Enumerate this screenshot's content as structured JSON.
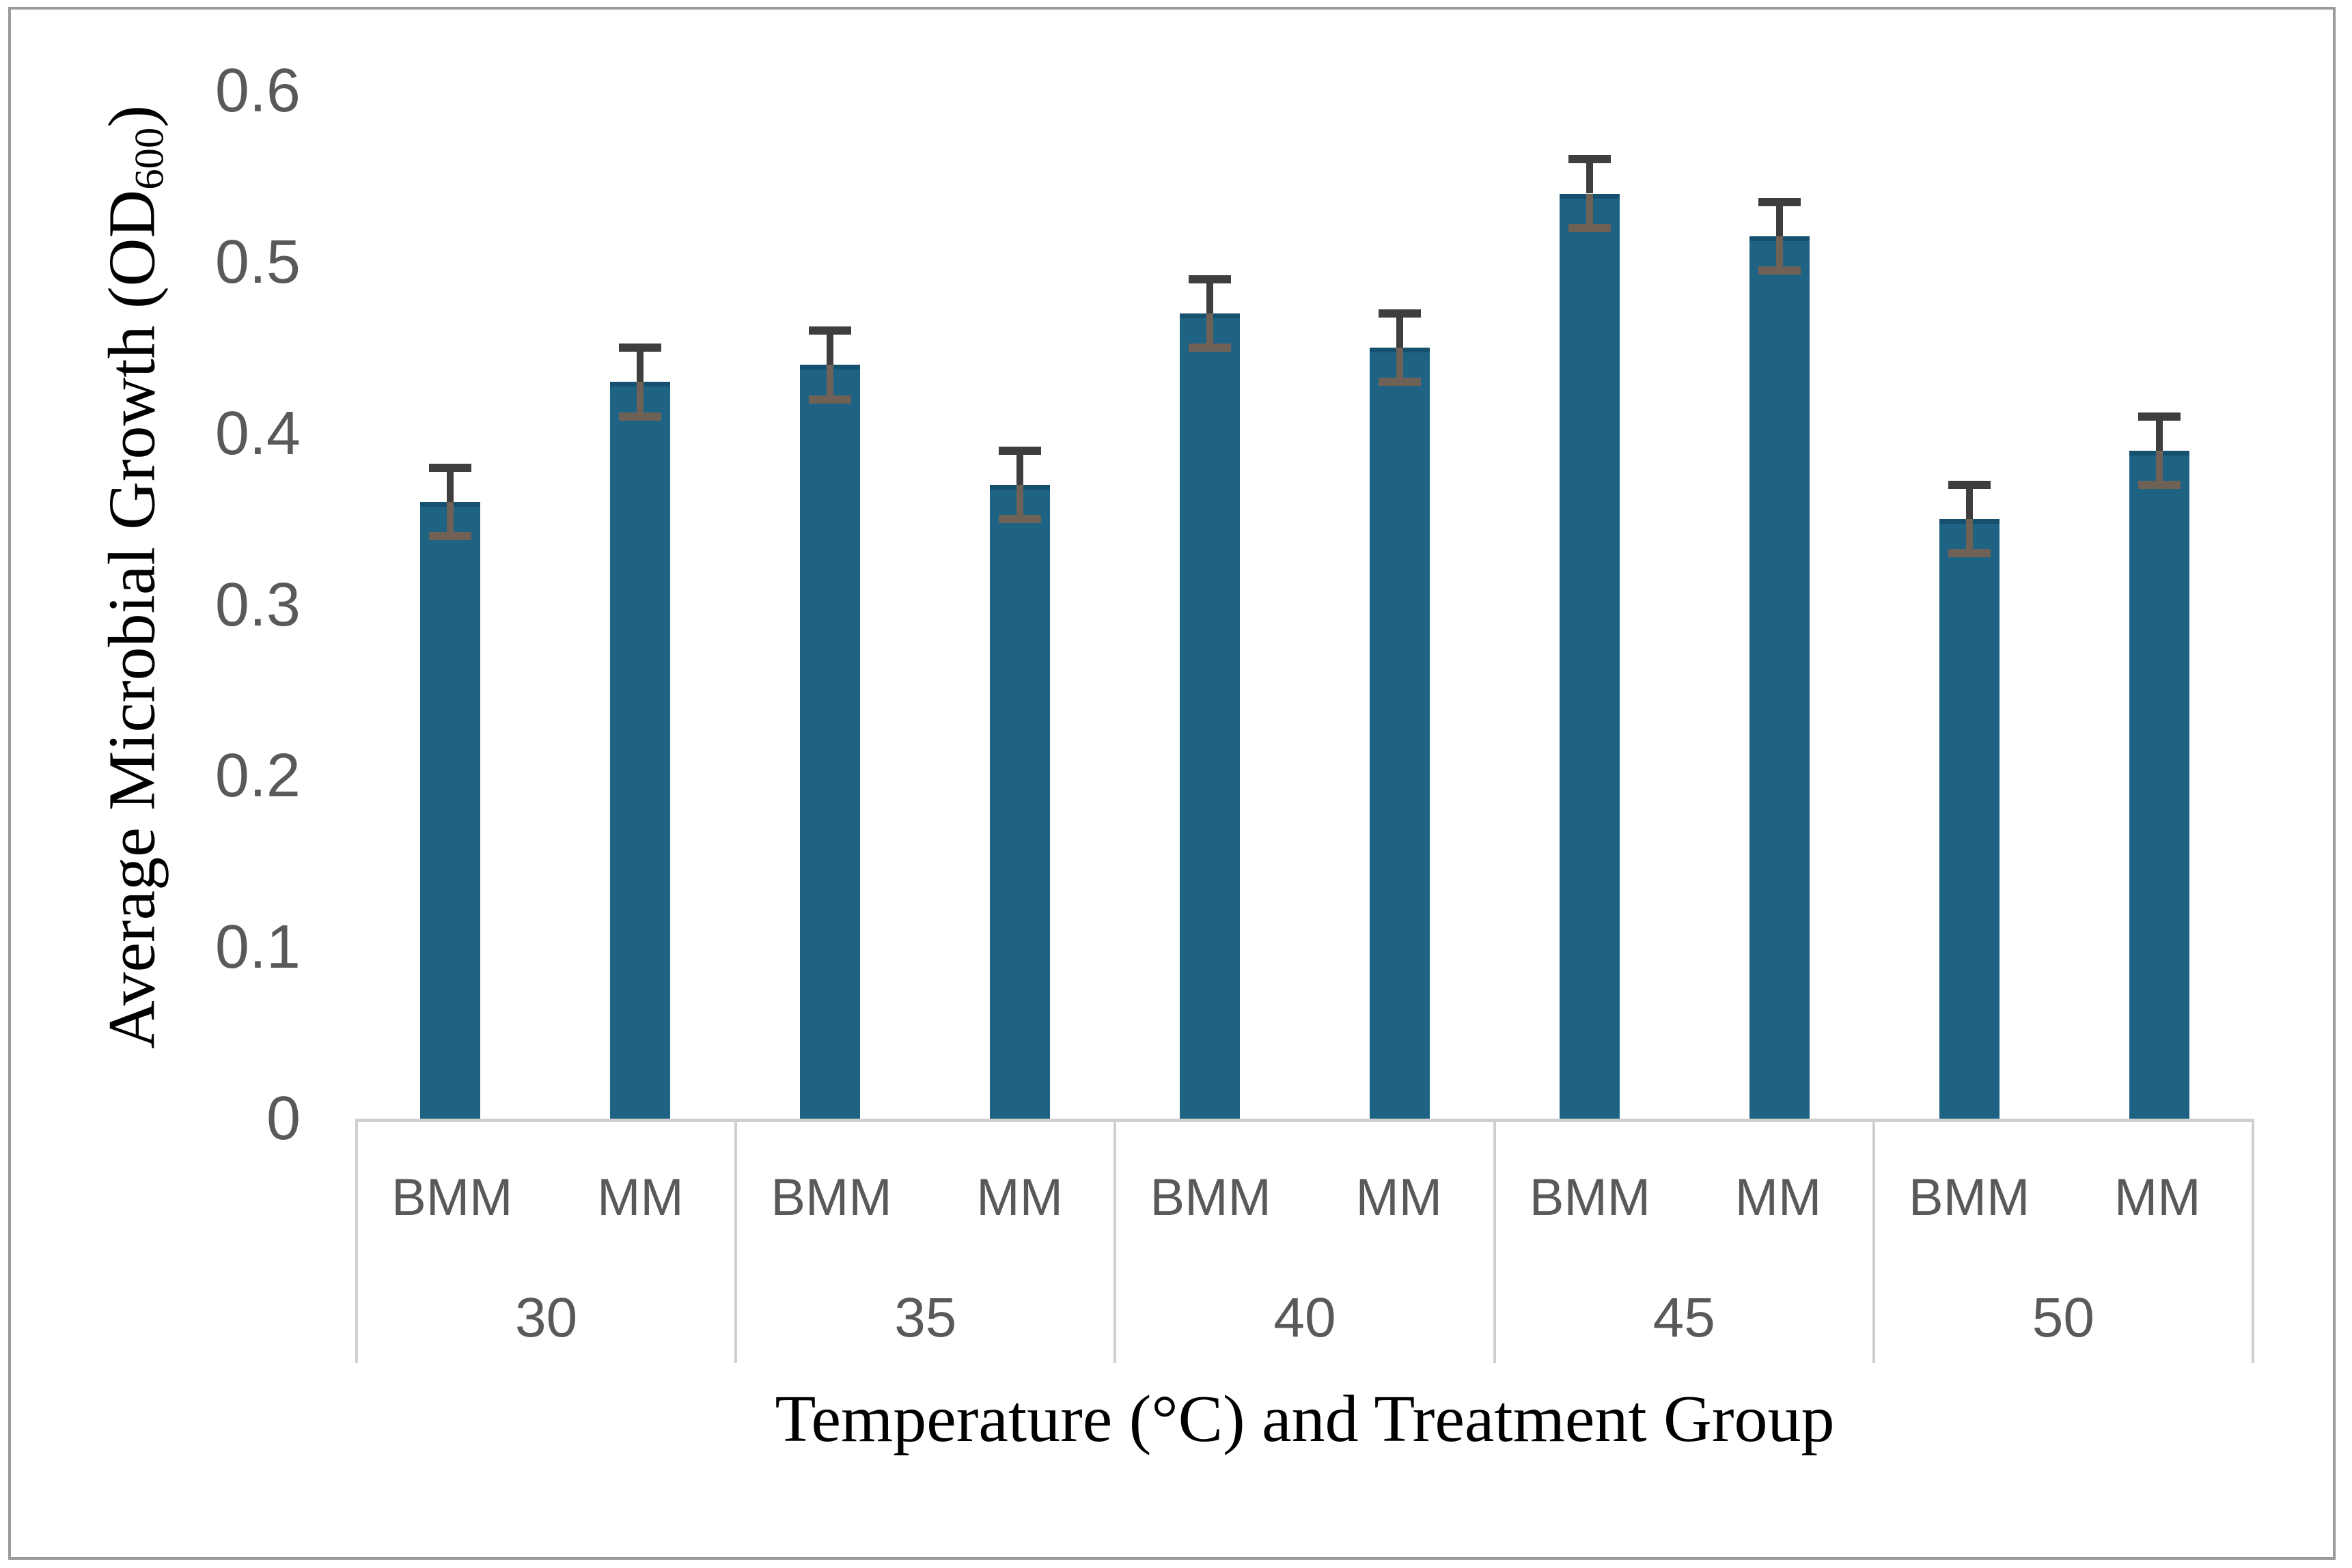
{
  "chart_data": {
    "type": "bar",
    "title": "",
    "xlabel": "Temperature (°C) and Treatment Group",
    "ylabel": "Average Microbial Growth (OD600)",
    "ylabel_parts": {
      "prefix": "Average Microbial Growth (OD",
      "subscript": "600",
      "suffix": ")"
    },
    "categories": [
      "30",
      "35",
      "40",
      "45",
      "50"
    ],
    "series": [
      {
        "name": "BMM",
        "values": [
          0.36,
          0.44,
          0.47,
          0.54,
          0.35
        ],
        "errors": [
          0.02,
          0.02,
          0.02,
          0.02,
          0.02
        ]
      },
      {
        "name": "MM",
        "values": [
          0.43,
          0.37,
          0.45,
          0.515,
          0.39
        ],
        "errors": [
          0.02,
          0.02,
          0.02,
          0.02,
          0.02
        ]
      }
    ],
    "ylim": [
      0,
      0.6
    ],
    "yticks": [
      0,
      0.1,
      0.2,
      0.3,
      0.4,
      0.5,
      0.6
    ],
    "ytick_labels": [
      "0",
      "0.1",
      "0.2",
      "0.3",
      "0.4",
      "0.5",
      "0.6"
    ],
    "grid": false,
    "legend": "none",
    "error_bars": true,
    "colors": {
      "bar_fill": "#1E6384",
      "bar_top_edge": "#15506E",
      "error_upper": "#3E3E3E",
      "error_lower": "#6F6156",
      "tick_text": "#595959",
      "category_text": "#595959",
      "axis_line": "#CFCFCF",
      "axis_title_text": "#000000",
      "frame_border": "#9B9B9B",
      "background": "#FFFFFF"
    }
  }
}
